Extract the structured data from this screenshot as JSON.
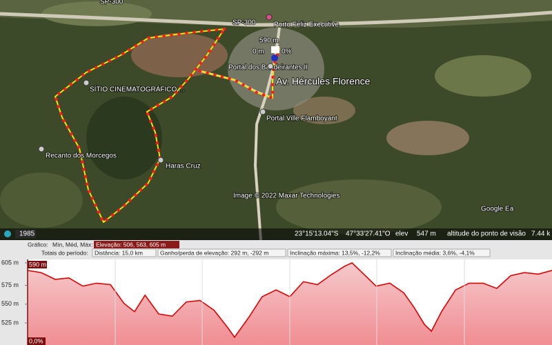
{
  "map": {
    "top_road": "SP-300",
    "road": "SP-300",
    "airport": "Porto Feliz Executive",
    "marker_elevation": "590 m",
    "marker_distance": "0 m",
    "marker_slope": "0%",
    "places": [
      "Portal dos Bandeirantes II",
      "SÍTIO CINEMATOGRÁFICO ...",
      "Portal Ville Flamboyant",
      "Recanto dos Morcegos",
      "Haras Cruz"
    ],
    "avenue": "Av. Hércules Florence",
    "copyright": "Image © 2022 Maxar Technologies",
    "logo": "Google Ea"
  },
  "status_bar": {
    "year": "1985",
    "latitude": "23°15'13.04\"S",
    "longitude": "47°33'27.41\"O",
    "elev_label": "elev",
    "elevation": "547 m",
    "eye_alt_label": "altitude do ponto de visão",
    "eye_alt": "7.44 k"
  },
  "profile": {
    "graph_label": "Gráfico:",
    "stats_label": "Mín, Méd, Máx:",
    "elevation": "Elevação: 506, 563, 605 m",
    "totals_label": "Totais do período:",
    "distance": "Distância: 15,0 km",
    "gain_loss": "Ganho/perda de elevação: 292 m, -292 m",
    "max_slope": "Inclinação máxima: 13,5%, -12,2%",
    "avg_slope": "Inclinação média: 3,6%, -4,1%",
    "cursor_elevation": "590 m",
    "cursor_slope": "0,0%",
    "chart": {
      "type": "line",
      "color": "#e00000",
      "x": [
        0,
        0.39,
        0.79,
        1.18,
        1.58,
        1.97,
        2.37,
        2.76,
        3.06,
        3.36,
        3.75,
        4.14,
        4.54,
        4.93,
        5.33,
        5.72,
        5.92,
        6.32,
        6.71,
        7.11,
        7.5,
        7.89,
        8.29,
        8.68,
        9.08,
        9.28,
        9.57,
        9.97,
        10.36,
        10.76,
        11.05,
        11.35,
        11.55,
        11.84,
        12.24,
        12.63,
        13.03,
        13.42,
        13.82,
        14.21,
        14.61,
        15
      ],
      "values": [
        595,
        592,
        583,
        585,
        574,
        578,
        576,
        551,
        540,
        562,
        537,
        534,
        553,
        555,
        542,
        519,
        506,
        532,
        560,
        569,
        560,
        580,
        576,
        589,
        601,
        605,
        592,
        574,
        578,
        565,
        546,
        523,
        514,
        540,
        569,
        578,
        578,
        571,
        588,
        592,
        590,
        595
      ],
      "xlim": [
        0,
        15
      ],
      "ylim": [
        495.6,
        609.6
      ],
      "yticks": [
        {
          "value": 605,
          "label": "605 m"
        },
        {
          "value": 575,
          "label": "575 m"
        },
        {
          "value": 550,
          "label": "550 m"
        },
        {
          "value": 525,
          "label": "525 m"
        }
      ]
    }
  }
}
